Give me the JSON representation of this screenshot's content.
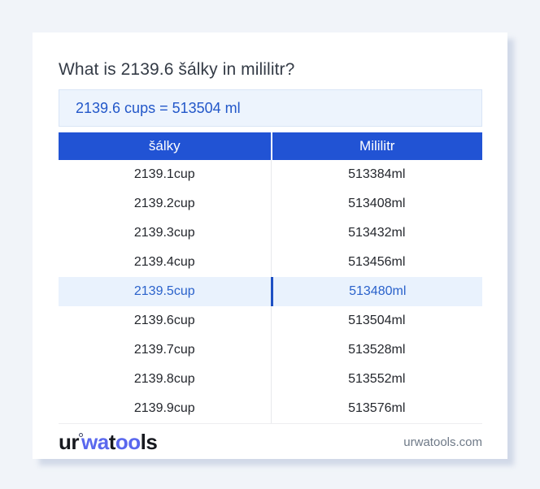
{
  "title": "What is 2139.6 šálky in mililitr?",
  "result": {
    "text": "2139.6 cups = 513504 ml"
  },
  "table": {
    "headers": {
      "cups": "šálky",
      "ml": "Mililitr"
    },
    "rows": [
      {
        "cups": "2139.1cup",
        "ml": "513384ml",
        "highlighted": false
      },
      {
        "cups": "2139.2cup",
        "ml": "513408ml",
        "highlighted": false
      },
      {
        "cups": "2139.3cup",
        "ml": "513432ml",
        "highlighted": false
      },
      {
        "cups": "2139.4cup",
        "ml": "513456ml",
        "highlighted": false
      },
      {
        "cups": "2139.5cup",
        "ml": "513480ml",
        "highlighted": true
      },
      {
        "cups": "2139.6cup",
        "ml": "513504ml",
        "highlighted": false
      },
      {
        "cups": "2139.7cup",
        "ml": "513528ml",
        "highlighted": false
      },
      {
        "cups": "2139.8cup",
        "ml": "513552ml",
        "highlighted": false
      },
      {
        "cups": "2139.9cup",
        "ml": "513576ml",
        "highlighted": false
      }
    ]
  },
  "footer": {
    "logo": {
      "seg1": "ur",
      "seg2": "wa",
      "seg3": "t",
      "seg4": "oo",
      "seg5": "ls"
    },
    "domain": "urwatools.com"
  },
  "colors": {
    "accent_blue": "#2153d4",
    "header_text": "#ffffff",
    "highlight_bg": "#e9f2fd",
    "highlight_text": "#2a62cb",
    "highlight_divider": "#1d50c4",
    "result_bg": "#edf4fd",
    "result_border": "#d9e5f6",
    "result_text": "#2257c9",
    "title_text": "#343b46",
    "body_text": "#24272d",
    "logo_blue": "#5a68ee",
    "domain_text": "#6e7987",
    "page_bg": "#f1f4f9"
  }
}
